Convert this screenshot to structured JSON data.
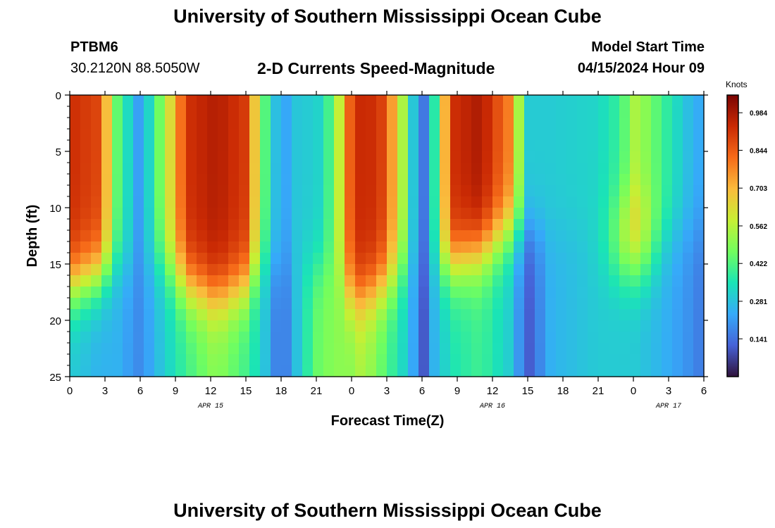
{
  "header": {
    "title": "University of Southern Mississippi Ocean Cube",
    "station": "PTBM6",
    "coords": "30.2120N  88.5050W",
    "subtitle": "2-D Currents Speed-Magnitude",
    "model_label": "Model Start Time",
    "model_time": "04/15/2024 Hour 09"
  },
  "footer": {
    "title": "University of Southern Mississippi Ocean Cube"
  },
  "chart_data": {
    "type": "heatmap",
    "xlabel": "Forecast Time(Z)",
    "ylabel": "Depth (ft)",
    "x_hours_from_apr15_00z": [
      0,
      54
    ],
    "y_range": [
      0,
      25
    ],
    "x_tick_labels": [
      "0",
      "3",
      "6",
      "9",
      "12",
      "15",
      "18",
      "21",
      "0",
      "3",
      "6",
      "9",
      "12",
      "15",
      "18",
      "21",
      "0",
      "3",
      "6"
    ],
    "y_tick_labels": [
      "0",
      "5",
      "10",
      "15",
      "20",
      "25"
    ],
    "y_tick_values": [
      0,
      5,
      10,
      15,
      20,
      25
    ],
    "date_labels": [
      {
        "text": "APR 15",
        "hour": 12
      },
      {
        "text": "APR 16",
        "hour": 36
      },
      {
        "text": "APR 17",
        "hour": 51
      }
    ],
    "colorbar": {
      "unit": "Knots",
      "range": [
        0.0,
        1.05
      ],
      "tick_labels": [
        "0.984",
        "0.844",
        "0.703",
        "0.562",
        "0.422",
        "0.281",
        "0.141"
      ],
      "tick_values": [
        0.984,
        0.844,
        0.703,
        0.562,
        0.422,
        0.281,
        0.141
      ]
    },
    "colormap": [
      "#30123b",
      "#4662d7",
      "#36aaf9",
      "#1ae4b6",
      "#72fe5e",
      "#c7ef34",
      "#fabb3c",
      "#f66b19",
      "#ca2a04",
      "#7a0403"
    ],
    "time_profiles_knots": [
      {
        "hour": 0.0,
        "top": 0.93,
        "bottom": 0.3,
        "k": 17
      },
      {
        "hour": 2.5,
        "top": 0.88,
        "bottom": 0.25,
        "k": 16
      },
      {
        "hour": 4.0,
        "top": 0.45,
        "bottom": 0.25,
        "k": 15
      },
      {
        "hour": 6.0,
        "top": 0.2,
        "bottom": 0.18,
        "k": 15
      },
      {
        "hour": 8.0,
        "top": 0.52,
        "bottom": 0.3,
        "k": 15
      },
      {
        "hour": 10.0,
        "top": 0.92,
        "bottom": 0.4,
        "k": 17
      },
      {
        "hour": 12.5,
        "top": 0.97,
        "bottom": 0.5,
        "k": 18
      },
      {
        "hour": 15.0,
        "top": 0.9,
        "bottom": 0.4,
        "k": 17
      },
      {
        "hour": 16.5,
        "top": 0.45,
        "bottom": 0.3,
        "k": 15
      },
      {
        "hour": 18.0,
        "top": 0.2,
        "bottom": 0.12,
        "k": 15
      },
      {
        "hour": 19.5,
        "top": 0.3,
        "bottom": 0.3,
        "k": 15
      },
      {
        "hour": 21.0,
        "top": 0.3,
        "bottom": 0.45,
        "k": 15
      },
      {
        "hour": 22.5,
        "top": 0.45,
        "bottom": 0.5,
        "k": 15
      },
      {
        "hour": 24.0,
        "top": 0.88,
        "bottom": 0.5,
        "k": 18
      },
      {
        "hour": 25.0,
        "top": 0.95,
        "bottom": 0.55,
        "k": 18
      },
      {
        "hour": 26.5,
        "top": 0.9,
        "bottom": 0.45,
        "k": 17
      },
      {
        "hour": 28.0,
        "top": 0.65,
        "bottom": 0.35,
        "k": 16
      },
      {
        "hour": 29.0,
        "top": 0.35,
        "bottom": 0.28,
        "k": 15
      },
      {
        "hour": 30.0,
        "top": 0.12,
        "bottom": 0.08,
        "k": 15
      },
      {
        "hour": 31.0,
        "top": 0.35,
        "bottom": 0.25,
        "k": 15
      },
      {
        "hour": 32.5,
        "top": 0.92,
        "bottom": 0.35,
        "k": 15
      },
      {
        "hour": 35.0,
        "top": 0.98,
        "bottom": 0.4,
        "k": 14
      },
      {
        "hour": 37.5,
        "top": 0.78,
        "bottom": 0.3,
        "k": 12
      },
      {
        "hour": 39.0,
        "top": 0.3,
        "bottom": 0.1,
        "k": 12
      },
      {
        "hour": 41.0,
        "top": 0.3,
        "bottom": 0.25,
        "k": 12
      },
      {
        "hour": 45.0,
        "top": 0.32,
        "bottom": 0.3,
        "k": 12
      },
      {
        "hour": 47.0,
        "top": 0.4,
        "bottom": 0.3,
        "k": 12
      },
      {
        "hour": 48.0,
        "top": 0.55,
        "bottom": 0.3,
        "k": 12
      },
      {
        "hour": 49.0,
        "top": 0.5,
        "bottom": 0.28,
        "k": 12
      },
      {
        "hour": 50.5,
        "top": 0.4,
        "bottom": 0.25,
        "k": 12
      },
      {
        "hour": 52.5,
        "top": 0.28,
        "bottom": 0.2,
        "k": 12
      },
      {
        "hour": 54.0,
        "top": 0.22,
        "bottom": 0.15,
        "k": 12
      }
    ],
    "mid_depth_bump": {
      "hour": 48.0,
      "depth": 13,
      "extra": 0.2
    }
  }
}
